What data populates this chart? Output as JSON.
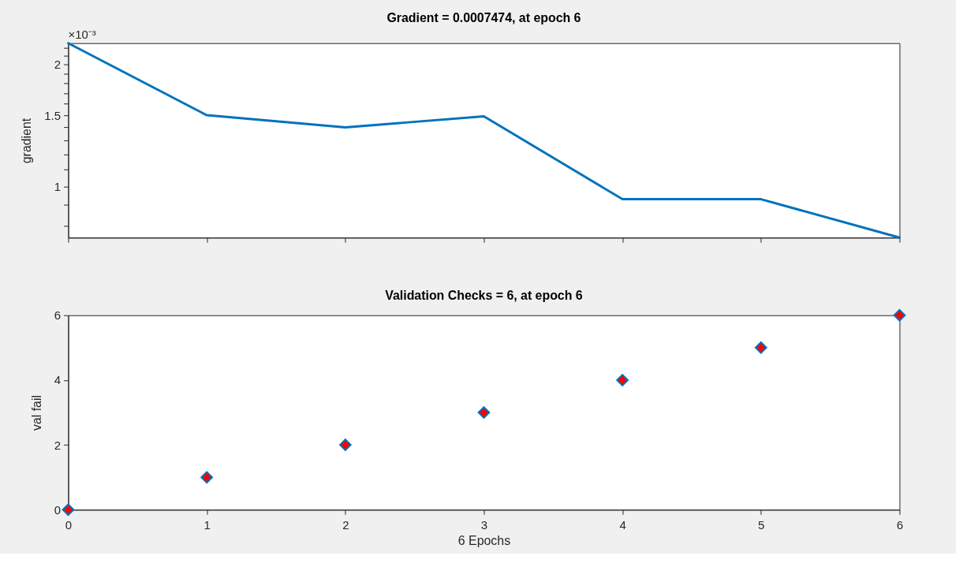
{
  "chart_data": [
    {
      "type": "line",
      "title": "Gradient = 0.0007474, at epoch 6",
      "ylabel": "gradient",
      "annotations": [
        "×10⁻³"
      ],
      "x": [
        0,
        1,
        2,
        3,
        4,
        5,
        6
      ],
      "values": [
        2.26,
        1.5,
        1.4,
        1.49,
        0.93,
        0.93,
        0.7474
      ],
      "color": "#0072bd",
      "log": true,
      "xlim": [
        0,
        6
      ],
      "xticks": [
        0,
        1,
        2,
        3,
        4,
        5,
        6
      ],
      "ylim": [
        0.7474,
        2.26
      ],
      "yticks": [
        {
          "value": 0.8,
          "label": null
        },
        {
          "value": 0.9,
          "label": null
        },
        1,
        {
          "value": 1.1,
          "label": null
        },
        {
          "value": 1.2,
          "label": null
        },
        {
          "value": 1.3,
          "label": null
        },
        {
          "value": 1.4,
          "label": null
        },
        1.5,
        {
          "value": 1.6,
          "label": null
        },
        {
          "value": 1.7,
          "label": null
        },
        {
          "value": 1.8,
          "label": null
        },
        {
          "value": 1.9,
          "label": null
        },
        2,
        {
          "value": 2.1,
          "label": null
        },
        {
          "value": 2.2,
          "label": null
        }
      ],
      "tick_labels": "y"
    },
    {
      "type": "scatter",
      "title": "Validation Checks = 6, at epoch 6",
      "xlabel": "6 Epochs",
      "ylabel": "val fail",
      "x": [
        0,
        1,
        2,
        3,
        4,
        5,
        6
      ],
      "values": [
        0,
        1,
        2,
        3,
        4,
        5,
        6
      ],
      "color": "#ff0000",
      "marker": "diamond",
      "xlim": [
        0,
        6
      ],
      "xticks": [
        0,
        1,
        2,
        3,
        4,
        5,
        6
      ],
      "ylim": [
        0,
        6
      ],
      "yticks": [
        0,
        2,
        4,
        6
      ]
    }
  ]
}
